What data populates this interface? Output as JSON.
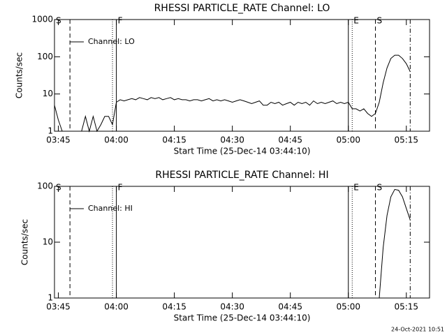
{
  "chart_data": [
    {
      "type": "line",
      "title": "RHESSI PARTICLE_RATE Channel: LO",
      "ylabel": "Counts/sec",
      "xlabel": "Start Time (25-Dec-14 03:44:10)",
      "log_y": true,
      "ylim": [
        1,
        1000
      ],
      "yticks": [
        1,
        10,
        100,
        1000
      ],
      "xlim": [
        "03:44",
        "05:21"
      ],
      "xticks": [
        "03:45",
        "04:00",
        "04:15",
        "04:30",
        "04:45",
        "05:00",
        "05:15"
      ],
      "markers": [
        {
          "x": "03:48",
          "style": "dashed"
        },
        {
          "x": "03:59",
          "style": "dotted"
        },
        {
          "x": "04:00",
          "style": "solid"
        },
        {
          "x": "05:00",
          "style": "solid"
        },
        {
          "x": "05:01",
          "style": "dotted"
        },
        {
          "x": "05:07",
          "style": "dashed"
        },
        {
          "x": "05:16",
          "style": "dashdot"
        }
      ],
      "annotations": [
        {
          "text": "S",
          "x": "03:44"
        },
        {
          "text": "F",
          "x": "04:00"
        },
        {
          "text": "E",
          "x": "05:01"
        },
        {
          "text": "S",
          "x": "05:07"
        }
      ],
      "x": [
        "03:44",
        "03:45",
        "03:46",
        "03:47",
        "03:48",
        "03:49",
        "03:50",
        "03:51",
        "03:52",
        "03:53",
        "03:54",
        "03:55",
        "03:56",
        "03:57",
        "03:58",
        "03:59",
        "04:00",
        "04:01",
        "04:02",
        "04:03",
        "04:04",
        "04:05",
        "04:06",
        "04:07",
        "04:08",
        "04:09",
        "04:10",
        "04:11",
        "04:12",
        "04:13",
        "04:14",
        "04:15",
        "04:16",
        "04:17",
        "04:18",
        "04:19",
        "04:20",
        "04:21",
        "04:22",
        "04:23",
        "04:24",
        "04:25",
        "04:26",
        "04:27",
        "04:28",
        "04:29",
        "04:30",
        "04:31",
        "04:32",
        "04:33",
        "04:34",
        "04:35",
        "04:36",
        "04:37",
        "04:38",
        "04:39",
        "04:40",
        "04:41",
        "04:42",
        "04:43",
        "04:44",
        "04:45",
        "04:46",
        "04:47",
        "04:48",
        "04:49",
        "04:50",
        "04:51",
        "04:52",
        "04:53",
        "04:54",
        "04:55",
        "04:56",
        "04:57",
        "04:58",
        "04:59",
        "05:00",
        "05:01",
        "05:02",
        "05:03",
        "05:04",
        "05:05",
        "05:06",
        "05:07",
        "05:08",
        "05:09",
        "05:10",
        "05:11",
        "05:12",
        "05:13",
        "05:14",
        "05:15",
        "05:16"
      ],
      "series": [
        {
          "name": "Channel: LO",
          "color": "#000000",
          "values": [
            5,
            2,
            1,
            1,
            1,
            1,
            1,
            1,
            2.5,
            1,
            2.5,
            1,
            1.5,
            2.5,
            2.5,
            1.5,
            6,
            7,
            6.5,
            7,
            7.5,
            7,
            8,
            7.5,
            7,
            8,
            7.5,
            8,
            7,
            7.5,
            8,
            7,
            7.5,
            7,
            7,
            6.5,
            7,
            7,
            6.5,
            7,
            7.5,
            6.5,
            7,
            6.5,
            7,
            6.5,
            6,
            6.5,
            7,
            6.5,
            6,
            5.5,
            6,
            6.5,
            5,
            5,
            6,
            5.5,
            6,
            5,
            5.5,
            6,
            5,
            6,
            5.5,
            6,
            5,
            6.5,
            5.5,
            6,
            5.5,
            6,
            6.5,
            5.5,
            6,
            5.5,
            6,
            4,
            4,
            3.5,
            4,
            3,
            2.5,
            3,
            6,
            20,
            50,
            90,
            110,
            110,
            90,
            65,
            40
          ]
        }
      ]
    },
    {
      "type": "line",
      "title": "RHESSI PARTICLE_RATE Channel: HI",
      "ylabel": "Counts/sec",
      "xlabel": "Start Time (25-Dec-14 03:44:10)",
      "log_y": true,
      "ylim": [
        1,
        100
      ],
      "yticks": [
        1,
        10,
        100
      ],
      "xlim": [
        "03:44",
        "05:21"
      ],
      "xticks": [
        "03:45",
        "04:00",
        "04:15",
        "04:30",
        "04:45",
        "05:00",
        "05:15"
      ],
      "markers": [
        {
          "x": "03:48",
          "style": "dashed"
        },
        {
          "x": "03:59",
          "style": "dotted"
        },
        {
          "x": "04:00",
          "style": "solid"
        },
        {
          "x": "05:00",
          "style": "solid"
        },
        {
          "x": "05:01",
          "style": "dotted"
        },
        {
          "x": "05:07",
          "style": "dashed"
        },
        {
          "x": "05:16",
          "style": "dashdot"
        }
      ],
      "annotations": [
        {
          "text": "S",
          "x": "03:44"
        },
        {
          "text": "F",
          "x": "04:00"
        },
        {
          "text": "E",
          "x": "05:01"
        },
        {
          "text": "S",
          "x": "05:07"
        }
      ],
      "x": [
        "05:08",
        "05:09",
        "05:10",
        "05:11",
        "05:12",
        "05:13",
        "05:14",
        "05:15",
        "05:16"
      ],
      "series": [
        {
          "name": "Channel: HI",
          "color": "#000000",
          "values": [
            1,
            8,
            30,
            65,
            88,
            85,
            65,
            40,
            25
          ]
        }
      ]
    }
  ],
  "timestamp": "24-Oct-2021 10:51"
}
